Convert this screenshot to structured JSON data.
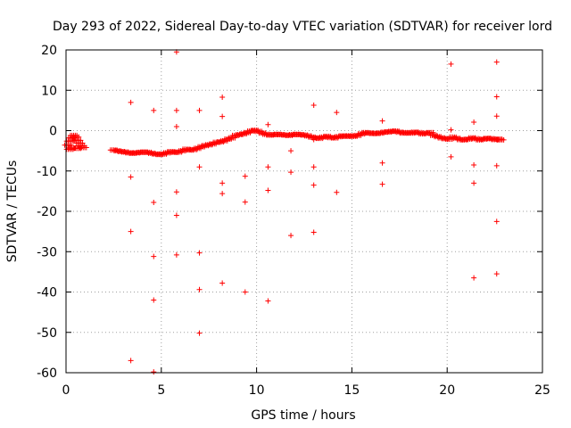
{
  "chart_data": {
    "type": "scatter",
    "title": "Day 293 of 2022, Sidereal Day-to-day VTEC variation (SDTVAR) for receiver lord",
    "xlabel": "GPS time / hours",
    "ylabel": "SDTVAR / TECUs",
    "xlim": [
      0,
      25
    ],
    "ylim": [
      -60,
      20
    ],
    "xticks": [
      0,
      5,
      10,
      15,
      20,
      25
    ],
    "yticks": [
      -60,
      -50,
      -40,
      -30,
      -20,
      -10,
      0,
      10,
      20
    ],
    "grid": true,
    "marker": "+",
    "color": "#ff0000",
    "series": [
      {
        "name": "dense track",
        "points": [
          [
            0.1,
            -3.6
          ],
          [
            0.2,
            -2.6
          ],
          [
            0.3,
            -1.8
          ],
          [
            0.4,
            -1.2
          ],
          [
            0.5,
            -1.6
          ],
          [
            0.6,
            -2.4
          ],
          [
            0.7,
            -3.1
          ],
          [
            0.8,
            -3.8
          ],
          [
            0.9,
            -4.2
          ],
          [
            0.3,
            -4.3
          ],
          [
            0.6,
            -4.4
          ],
          [
            0.2,
            -4.6
          ],
          [
            2.5,
            -4.8
          ],
          [
            2.7,
            -5.0
          ],
          [
            2.9,
            -5.2
          ],
          [
            3.1,
            -5.3
          ],
          [
            3.3,
            -5.5
          ],
          [
            3.5,
            -5.6
          ],
          [
            3.7,
            -5.5
          ],
          [
            3.9,
            -5.4
          ],
          [
            4.1,
            -5.3
          ],
          [
            4.3,
            -5.4
          ],
          [
            4.5,
            -5.6
          ],
          [
            4.7,
            -5.8
          ],
          [
            4.9,
            -5.9
          ],
          [
            5.1,
            -5.8
          ],
          [
            5.3,
            -5.5
          ],
          [
            5.5,
            -5.2
          ],
          [
            5.7,
            -5.4
          ],
          [
            5.9,
            -5.3
          ],
          [
            6.1,
            -5.0
          ],
          [
            6.3,
            -4.6
          ],
          [
            6.5,
            -4.8
          ],
          [
            6.7,
            -4.7
          ],
          [
            6.9,
            -4.4
          ],
          [
            7.1,
            -4.0
          ],
          [
            7.3,
            -3.7
          ],
          [
            7.5,
            -3.5
          ],
          [
            7.7,
            -3.3
          ],
          [
            7.9,
            -2.9
          ],
          [
            8.1,
            -2.8
          ],
          [
            8.3,
            -2.5
          ],
          [
            8.5,
            -2.1
          ],
          [
            8.7,
            -1.8
          ],
          [
            8.9,
            -1.2
          ],
          [
            9.1,
            -1.0
          ],
          [
            9.3,
            -0.8
          ],
          [
            9.5,
            -0.5
          ],
          [
            9.7,
            -0.1
          ],
          [
            9.9,
            0.1
          ],
          [
            10.1,
            -0.2
          ],
          [
            10.3,
            -0.6
          ],
          [
            10.5,
            -0.9
          ],
          [
            10.7,
            -1.1
          ],
          [
            10.9,
            -1.0
          ],
          [
            11.1,
            -0.9
          ],
          [
            11.3,
            -1.0
          ],
          [
            11.5,
            -1.1
          ],
          [
            11.7,
            -1.2
          ],
          [
            11.9,
            -1.0
          ],
          [
            12.1,
            -0.9
          ],
          [
            12.3,
            -1.0
          ],
          [
            12.5,
            -1.1
          ],
          [
            12.7,
            -1.3
          ],
          [
            12.9,
            -1.6
          ],
          [
            13.1,
            -1.8
          ],
          [
            13.3,
            -1.9
          ],
          [
            13.5,
            -1.6
          ],
          [
            13.7,
            -1.4
          ],
          [
            13.9,
            -1.7
          ],
          [
            14.1,
            -1.8
          ],
          [
            14.3,
            -1.5
          ],
          [
            14.5,
            -1.3
          ],
          [
            14.7,
            -1.4
          ],
          [
            14.9,
            -1.3
          ],
          [
            15.1,
            -1.4
          ],
          [
            15.3,
            -1.2
          ],
          [
            15.5,
            -0.8
          ],
          [
            15.7,
            -0.5
          ],
          [
            15.9,
            -0.6
          ],
          [
            16.1,
            -0.7
          ],
          [
            16.3,
            -0.7
          ],
          [
            16.5,
            -0.6
          ],
          [
            16.7,
            -0.4
          ],
          [
            16.9,
            -0.3
          ],
          [
            17.1,
            -0.2
          ],
          [
            17.3,
            -0.1
          ],
          [
            17.5,
            -0.4
          ],
          [
            17.7,
            -0.6
          ],
          [
            17.9,
            -0.5
          ],
          [
            18.1,
            -0.6
          ],
          [
            18.3,
            -0.4
          ],
          [
            18.5,
            -0.5
          ],
          [
            18.7,
            -0.8
          ],
          [
            18.9,
            -0.6
          ],
          [
            19.1,
            -0.5
          ],
          [
            19.3,
            -1.2
          ],
          [
            19.5,
            -1.5
          ],
          [
            19.7,
            -1.8
          ],
          [
            19.9,
            -2.0
          ],
          [
            20.1,
            -2.1
          ],
          [
            20.3,
            -1.6
          ],
          [
            20.5,
            -1.9
          ],
          [
            20.7,
            -2.2
          ],
          [
            20.9,
            -2.3
          ],
          [
            21.1,
            -2.1
          ],
          [
            21.3,
            -1.8
          ],
          [
            21.5,
            -2.0
          ],
          [
            21.7,
            -2.3
          ],
          [
            21.9,
            -2.1
          ],
          [
            22.1,
            -1.9
          ],
          [
            22.3,
            -2.0
          ],
          [
            22.5,
            -2.2
          ],
          [
            22.7,
            -2.1
          ],
          [
            22.8,
            -2.3
          ]
        ]
      },
      {
        "name": "outliers",
        "points": [
          [
            3.4,
            7.0
          ],
          [
            3.4,
            -11.5
          ],
          [
            3.4,
            -25.0
          ],
          [
            3.4,
            -57.0
          ],
          [
            4.6,
            5.0
          ],
          [
            4.6,
            -17.8
          ],
          [
            4.6,
            -31.2
          ],
          [
            4.6,
            -42.0
          ],
          [
            4.6,
            -59.8
          ],
          [
            5.8,
            19.5
          ],
          [
            5.8,
            5.0
          ],
          [
            5.8,
            1.0
          ],
          [
            5.8,
            -15.2
          ],
          [
            5.8,
            -21.0
          ],
          [
            5.8,
            -30.8
          ],
          [
            7.0,
            5.0
          ],
          [
            7.0,
            -9.0
          ],
          [
            7.0,
            -30.3
          ],
          [
            7.0,
            -39.4
          ],
          [
            7.0,
            -50.2
          ],
          [
            8.2,
            8.3
          ],
          [
            8.2,
            3.5
          ],
          [
            8.2,
            -13.0
          ],
          [
            8.2,
            -15.6
          ],
          [
            8.2,
            -37.8
          ],
          [
            9.4,
            -11.3
          ],
          [
            9.4,
            -17.7
          ],
          [
            9.4,
            -40.0
          ],
          [
            10.6,
            1.5
          ],
          [
            10.6,
            -9.0
          ],
          [
            10.6,
            -14.8
          ],
          [
            10.6,
            -42.2
          ],
          [
            11.8,
            -5.0
          ],
          [
            11.8,
            -10.3
          ],
          [
            11.8,
            -26.0
          ],
          [
            13.0,
            6.3
          ],
          [
            13.0,
            -2.2
          ],
          [
            13.0,
            -9.0
          ],
          [
            13.0,
            -13.5
          ],
          [
            13.0,
            -25.2
          ],
          [
            14.2,
            4.5
          ],
          [
            14.2,
            -15.3
          ],
          [
            16.6,
            2.4
          ],
          [
            16.6,
            -8.0
          ],
          [
            16.6,
            -13.3
          ],
          [
            20.2,
            16.5
          ],
          [
            20.2,
            0.2
          ],
          [
            20.2,
            -6.5
          ],
          [
            21.4,
            2.1
          ],
          [
            21.4,
            -8.5
          ],
          [
            21.4,
            -13.0
          ],
          [
            21.4,
            -36.5
          ],
          [
            22.6,
            17.0
          ],
          [
            22.6,
            8.4
          ],
          [
            22.6,
            3.6
          ],
          [
            22.6,
            -8.7
          ],
          [
            22.6,
            -22.5
          ],
          [
            22.6,
            -35.5
          ]
        ]
      }
    ]
  }
}
